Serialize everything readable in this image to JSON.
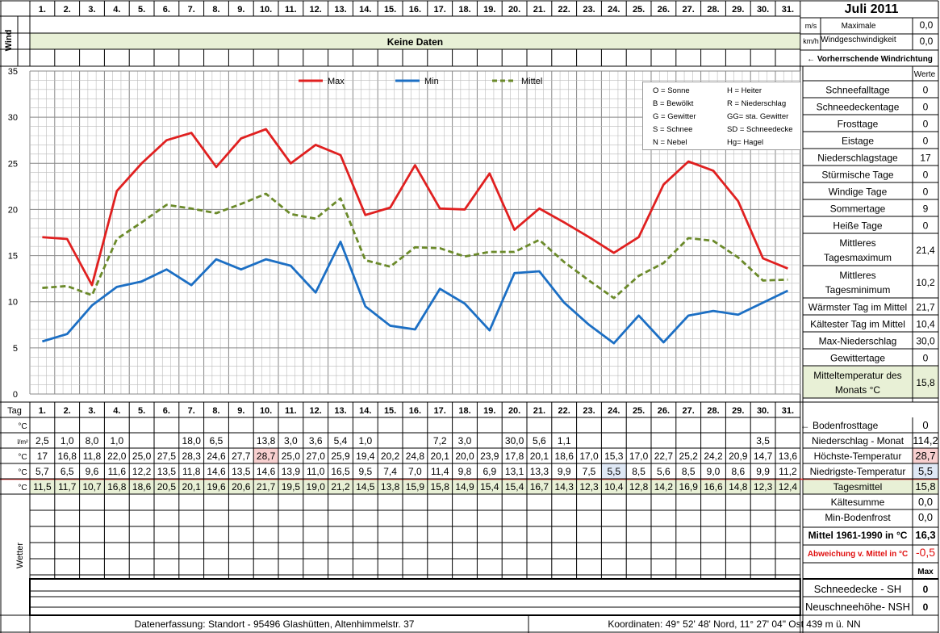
{
  "header": {
    "month_title": "Juli 2011",
    "wind_label": "Wind",
    "no_data": "Keine Daten",
    "unit_ms": "m/s",
    "unit_kmh": "km/h",
    "max_label_1": "Maximale",
    "max_label_2": "Windgeschwindigkeit",
    "max_ms": "0,0",
    "max_kmh": "0,0",
    "wind_dir": "← Vorherrschende Windrichtung"
  },
  "days": [
    "1.",
    "2.",
    "3.",
    "4.",
    "5.",
    "6.",
    "7.",
    "8.",
    "9.",
    "10.",
    "11.",
    "12.",
    "13.",
    "14.",
    "15.",
    "16.",
    "17.",
    "18.",
    "19.",
    "20.",
    "21.",
    "22.",
    "23.",
    "24.",
    "25.",
    "26.",
    "27.",
    "28.",
    "29.",
    "30.",
    "31."
  ],
  "chart_data": {
    "type": "line",
    "x": [
      1,
      2,
      3,
      4,
      5,
      6,
      7,
      8,
      9,
      10,
      11,
      12,
      13,
      14,
      15,
      16,
      17,
      18,
      19,
      20,
      21,
      22,
      23,
      24,
      25,
      26,
      27,
      28,
      29,
      30,
      31
    ],
    "ylim": [
      0,
      35
    ],
    "yticks": [
      0,
      5,
      10,
      15,
      20,
      25,
      30,
      35
    ],
    "grid": true,
    "legend": "top-center",
    "series": [
      {
        "name": "Max",
        "color": "#e02020",
        "values": [
          17,
          16.8,
          11.8,
          22,
          25,
          27.5,
          28.3,
          24.6,
          27.7,
          28.7,
          25,
          27,
          25.9,
          19.4,
          20.2,
          24.8,
          20.1,
          20,
          23.9,
          17.8,
          20.1,
          18.6,
          17,
          15.3,
          17,
          22.7,
          25.2,
          24.2,
          20.9,
          14.7,
          13.6
        ]
      },
      {
        "name": "Min",
        "color": "#1c6fc4",
        "values": [
          5.7,
          6.5,
          9.6,
          11.6,
          12.2,
          13.5,
          11.8,
          14.6,
          13.5,
          14.6,
          13.9,
          11,
          16.5,
          9.5,
          7.4,
          7,
          11.4,
          9.8,
          6.9,
          13.1,
          13.3,
          9.9,
          7.5,
          5.5,
          8.5,
          5.6,
          8.5,
          9,
          8.6,
          9.9,
          11.2
        ]
      },
      {
        "name": "Mittel",
        "color": "#6b8a2a",
        "values": [
          11.5,
          11.7,
          10.7,
          16.8,
          18.6,
          20.5,
          20.1,
          19.6,
          20.6,
          21.7,
          19.5,
          19,
          21.2,
          14.5,
          13.8,
          15.9,
          15.8,
          14.9,
          15.4,
          15.4,
          16.7,
          14.3,
          12.3,
          10.4,
          12.8,
          14.2,
          16.9,
          16.6,
          14.8,
          12.3,
          12.4
        ]
      }
    ]
  },
  "weather_legend": [
    [
      "O = Sonne",
      "H = Heiter"
    ],
    [
      "B = Bewölkt",
      "R = Niederschlag"
    ],
    [
      "G = Gewitter",
      "GG= sta. Gewitter"
    ],
    [
      "S = Schnee",
      "SD = Schneedecke"
    ],
    [
      "N = Nebel",
      "Hg= Hagel"
    ]
  ],
  "stats": {
    "header": "Werte",
    "rows": [
      {
        "label": "Schneefalltage",
        "value": "0"
      },
      {
        "label": "Schneedeckentage",
        "value": "0"
      },
      {
        "label": "Frosttage",
        "value": "0"
      },
      {
        "label": "Eistage",
        "value": "0"
      },
      {
        "label": "Niederschlagstage",
        "value": "17"
      },
      {
        "label": "Stürmische Tage",
        "value": "0"
      },
      {
        "label": "Windige Tage",
        "value": "0"
      },
      {
        "label": "Sommertage",
        "value": "9"
      },
      {
        "label": "Heiße Tage",
        "value": "0"
      },
      {
        "label": "Mittleres Tagesmaximum",
        "value": "21,4"
      },
      {
        "label": "Mittleres Tagesminimum",
        "value": "10,2"
      },
      {
        "label": "Wärmster Tag im Mittel",
        "value": "21,7"
      },
      {
        "label": "Kältester Tag im Mittel",
        "value": "10,4"
      },
      {
        "label": "Max-Niederschlag",
        "value": "30,0"
      },
      {
        "label": "Gewittertage",
        "value": "0"
      },
      {
        "label": "Mitteltemperatur des Monats °C",
        "value": "15,8"
      }
    ]
  },
  "table": {
    "tag_label": "Tag",
    "unit_c": "°C",
    "unit_lm2": "l/m²",
    "wetter_label": "Wetter",
    "precip": [
      "2,5",
      "1,0",
      "8,0",
      "1,0",
      "",
      "",
      "18,0",
      "6,5",
      "",
      "13,8",
      "3,0",
      "3,6",
      "5,4",
      "1,0",
      "",
      "",
      "7,2",
      "3,0",
      "",
      "30,0",
      "5,6",
      "1,1",
      "",
      "",
      "",
      "",
      "",
      "",
      "",
      "3,5",
      ""
    ],
    "max": [
      "17",
      "16,8",
      "11,8",
      "22,0",
      "25,0",
      "27,5",
      "28,3",
      "24,6",
      "27,7",
      "28,7",
      "25,0",
      "27,0",
      "25,9",
      "19,4",
      "20,2",
      "24,8",
      "20,1",
      "20,0",
      "23,9",
      "17,8",
      "20,1",
      "18,6",
      "17,0",
      "15,3",
      "17,0",
      "22,7",
      "25,2",
      "24,2",
      "20,9",
      "14,7",
      "13,6"
    ],
    "min": [
      "5,7",
      "6,5",
      "9,6",
      "11,6",
      "12,2",
      "13,5",
      "11,8",
      "14,6",
      "13,5",
      "14,6",
      "13,9",
      "11,0",
      "16,5",
      "9,5",
      "7,4",
      "7,0",
      "11,4",
      "9,8",
      "6,9",
      "13,1",
      "13,3",
      "9,9",
      "7,5",
      "5,5",
      "8,5",
      "5,6",
      "8,5",
      "9,0",
      "8,6",
      "9,9",
      "11,2"
    ],
    "mean": [
      "11,5",
      "11,7",
      "10,7",
      "16,8",
      "18,6",
      "20,5",
      "20,1",
      "19,6",
      "20,6",
      "21,7",
      "19,5",
      "19,0",
      "21,2",
      "14,5",
      "13,8",
      "15,9",
      "15,8",
      "14,9",
      "15,4",
      "15,4",
      "16,7",
      "14,3",
      "12,3",
      "10,4",
      "12,8",
      "14,2",
      "16,9",
      "16,6",
      "14,8",
      "12,3",
      "12,4"
    ]
  },
  "side": {
    "boden_label": "← Bodenfrosttage",
    "boden_value": "0",
    "niederschlag_label": "Niederschlag - Monat",
    "niederschlag_value": "114,2",
    "hoechst_label": "Höchste-Temperatur",
    "hoechst_value": "28,7",
    "niedrigst_label": "Niedrigste-Temperatur",
    "niedrigst_value": "5,5",
    "tagesmittel_label": "Tagesmittel",
    "tagesmittel_value": "15,8",
    "kaelte_label": "Kältesumme",
    "kaelte_value": "0,0",
    "minboden_label": "Min-Bodenfrost",
    "minboden_value": "0,0",
    "mittel_label": "Mittel 1961-1990 in °C",
    "mittel_value": "16,3",
    "abw_label": "Abweichung v. Mittel in °C",
    "abw_value": "-0,5",
    "max_label": "Max",
    "sh_label": "Schneedecke -   SH",
    "sh_value": "0",
    "nsh_label": "Neuschneehöhe- NSH",
    "nsh_value": "0"
  },
  "footer": {
    "left": "Datenerfassung:  Standort -   95496  Glashütten, Altenhimmelstr. 37",
    "right": "Koordinaten:  49° 52' 48' Nord,   11° 27' 04\" Ost   439 m ü. NN"
  }
}
